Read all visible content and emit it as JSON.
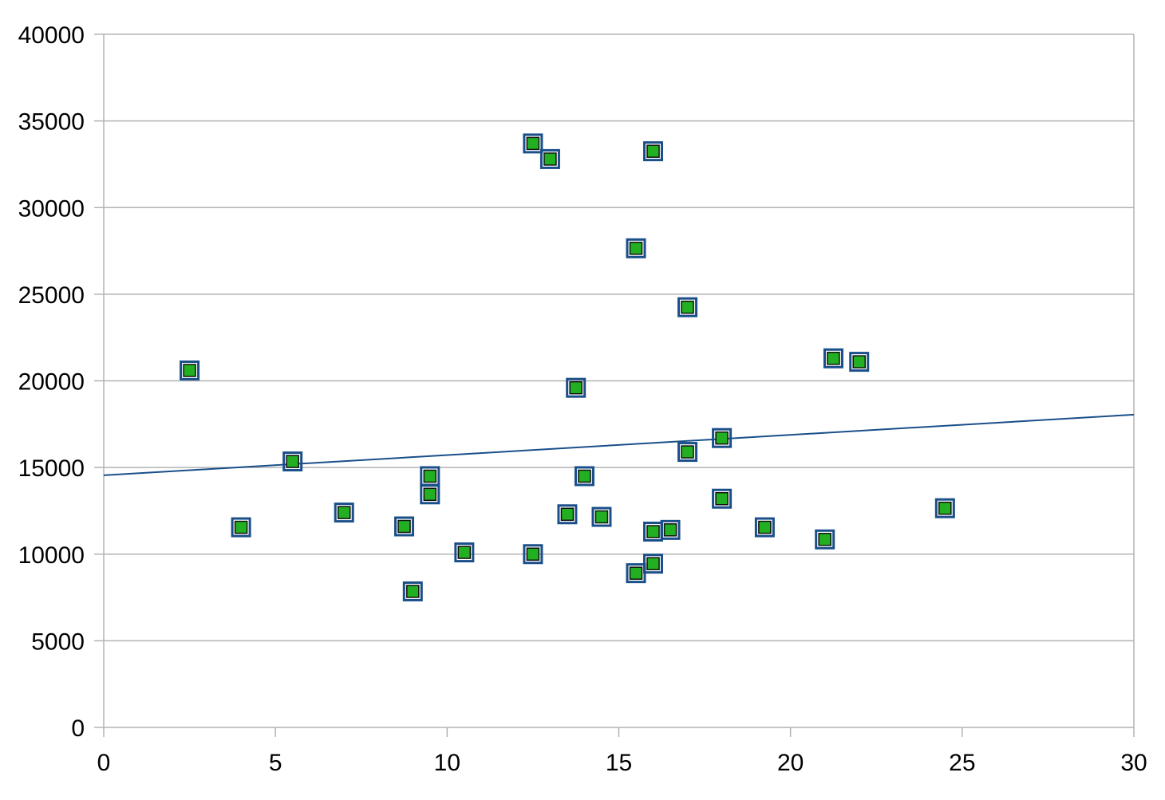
{
  "chart_data": {
    "type": "scatter",
    "title": "",
    "xlabel": "",
    "ylabel": "",
    "xlim": [
      0,
      30
    ],
    "ylim": [
      0,
      40000
    ],
    "x_ticks": [
      "0",
      "5",
      "10",
      "15",
      "20",
      "25",
      "30"
    ],
    "y_ticks": [
      "0",
      "5000",
      "10000",
      "15000",
      "20000",
      "25000",
      "30000",
      "35000",
      "40000"
    ],
    "grid": "horizontal",
    "legend": "none",
    "series": [
      {
        "marker": "square",
        "color": "#22b022",
        "edge_color": "#1a4f8a",
        "points": [
          {
            "x": 2.5,
            "y": 20600
          },
          {
            "x": 4.0,
            "y": 11550
          },
          {
            "x": 5.5,
            "y": 15350
          },
          {
            "x": 7.0,
            "y": 12400
          },
          {
            "x": 8.75,
            "y": 11600
          },
          {
            "x": 9.0,
            "y": 7850
          },
          {
            "x": 9.5,
            "y": 14500
          },
          {
            "x": 9.5,
            "y": 13450
          },
          {
            "x": 10.5,
            "y": 10100
          },
          {
            "x": 12.5,
            "y": 33700
          },
          {
            "x": 12.5,
            "y": 10000
          },
          {
            "x": 13.0,
            "y": 32800
          },
          {
            "x": 13.5,
            "y": 12300
          },
          {
            "x": 13.75,
            "y": 19600
          },
          {
            "x": 14.0,
            "y": 14500
          },
          {
            "x": 14.5,
            "y": 12150
          },
          {
            "x": 15.5,
            "y": 27650
          },
          {
            "x": 15.5,
            "y": 8900
          },
          {
            "x": 16.0,
            "y": 33250
          },
          {
            "x": 16.0,
            "y": 11300
          },
          {
            "x": 16.0,
            "y": 9450
          },
          {
            "x": 16.5,
            "y": 11400
          },
          {
            "x": 17.0,
            "y": 24250
          },
          {
            "x": 17.0,
            "y": 15900
          },
          {
            "x": 18.0,
            "y": 16700
          },
          {
            "x": 18.0,
            "y": 13200
          },
          {
            "x": 19.25,
            "y": 11550
          },
          {
            "x": 21.0,
            "y": 10850
          },
          {
            "x": 21.25,
            "y": 21300
          },
          {
            "x": 22.0,
            "y": 21100
          },
          {
            "x": 24.5,
            "y": 12650
          }
        ]
      }
    ],
    "trendline": {
      "type": "linear",
      "color": "#1a4f8a",
      "points": [
        {
          "x": 0,
          "y": 14550
        },
        {
          "x": 30,
          "y": 18050
        }
      ]
    }
  }
}
